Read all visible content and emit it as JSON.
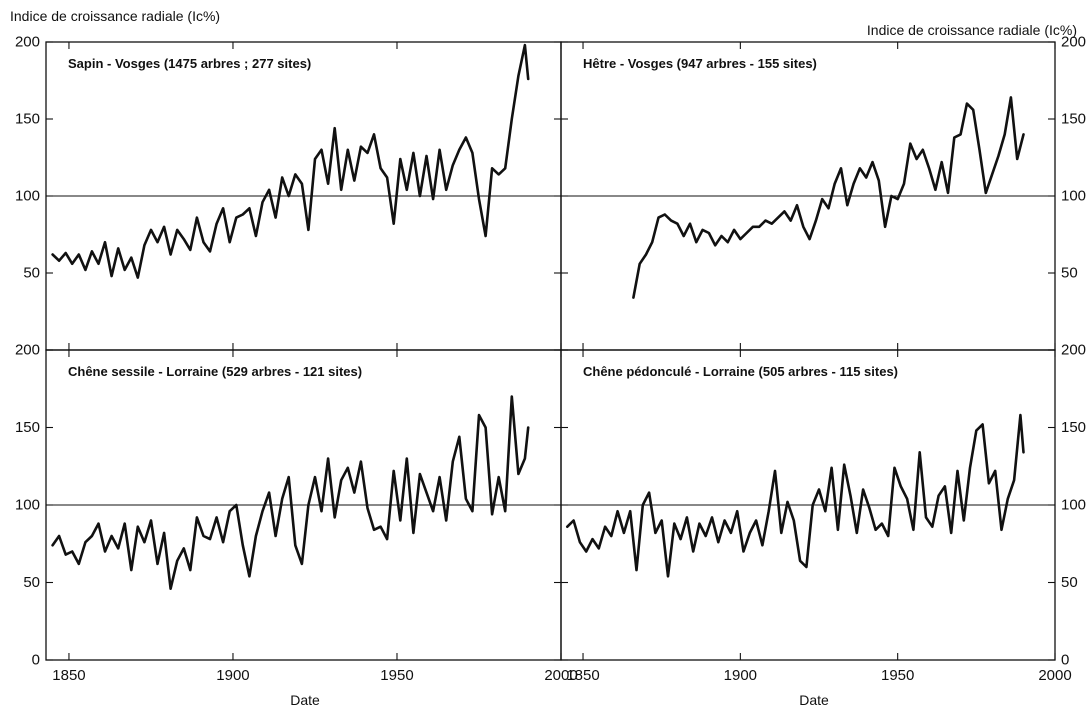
{
  "figure": {
    "ylabel_left": "Indice de croissance radiale (Ic%)",
    "ylabel_right": "Indice de croissance radiale (Ic%)",
    "xlabel": "Date"
  },
  "chart_data": [
    {
      "type": "line",
      "title": "Sapin - Vosges (1475 arbres ; 277 sites)",
      "xlabel": "Date",
      "ylabel": "Indice de croissance radiale (Ic%)",
      "xlim": [
        1843,
        2000
      ],
      "ylim": [
        0,
        200
      ],
      "xticks": [
        1850,
        1900,
        1950,
        2000
      ],
      "yticks": [
        50,
        100,
        150,
        200
      ],
      "reference_line": 100,
      "series": [
        {
          "x": [
            1845,
            1847,
            1849,
            1851,
            1853,
            1855,
            1857,
            1859,
            1861,
            1863,
            1865,
            1867,
            1869,
            1871,
            1873,
            1875,
            1877,
            1879,
            1881,
            1883,
            1885,
            1887,
            1889,
            1891,
            1893,
            1895,
            1897,
            1899,
            1901,
            1903,
            1905,
            1907,
            1909,
            1911,
            1913,
            1915,
            1917,
            1919,
            1921,
            1923,
            1925,
            1927,
            1929,
            1931,
            1933,
            1935,
            1937,
            1939,
            1941,
            1943,
            1945,
            1947,
            1949,
            1951,
            1953,
            1955,
            1957,
            1959,
            1961,
            1963,
            1965,
            1967,
            1969,
            1971,
            1973,
            1975,
            1977,
            1979,
            1981,
            1983,
            1985,
            1987,
            1989,
            1990
          ],
          "y": [
            62,
            58,
            63,
            56,
            62,
            52,
            64,
            56,
            70,
            48,
            66,
            52,
            60,
            47,
            68,
            78,
            70,
            80,
            62,
            78,
            72,
            65,
            86,
            70,
            64,
            82,
            92,
            70,
            86,
            88,
            92,
            74,
            96,
            104,
            86,
            112,
            100,
            114,
            108,
            78,
            124,
            130,
            108,
            144,
            104,
            130,
            110,
            132,
            128,
            140,
            118,
            112,
            82,
            124,
            104,
            128,
            100,
            126,
            98,
            130,
            104,
            120,
            130,
            138,
            128,
            98,
            74,
            118,
            114,
            118,
            150,
            178,
            198,
            176
          ]
        }
      ]
    },
    {
      "type": "line",
      "title": "Hêtre - Vosges (947 arbres - 155 sites)",
      "xlabel": "Date",
      "ylabel": "Indice de croissance radiale (Ic%)",
      "xlim": [
        1843,
        2000
      ],
      "ylim": [
        0,
        200
      ],
      "xticks": [
        1850,
        1900,
        1950,
        2000
      ],
      "yticks": [
        50,
        100,
        150,
        200
      ],
      "reference_line": 100,
      "series": [
        {
          "x": [
            1866,
            1868,
            1870,
            1872,
            1874,
            1876,
            1878,
            1880,
            1882,
            1884,
            1886,
            1888,
            1890,
            1892,
            1894,
            1896,
            1898,
            1900,
            1902,
            1904,
            1906,
            1908,
            1910,
            1912,
            1914,
            1916,
            1918,
            1920,
            1922,
            1924,
            1926,
            1928,
            1930,
            1932,
            1934,
            1936,
            1938,
            1940,
            1942,
            1944,
            1946,
            1948,
            1950,
            1952,
            1954,
            1956,
            1958,
            1960,
            1962,
            1964,
            1966,
            1968,
            1970,
            1972,
            1974,
            1976,
            1978,
            1980,
            1982,
            1984,
            1986,
            1988,
            1990
          ],
          "y": [
            34,
            56,
            62,
            70,
            86,
            88,
            84,
            82,
            74,
            82,
            70,
            78,
            76,
            68,
            74,
            70,
            78,
            72,
            76,
            80,
            80,
            84,
            82,
            86,
            90,
            84,
            94,
            80,
            72,
            84,
            98,
            92,
            108,
            118,
            94,
            108,
            118,
            112,
            122,
            110,
            80,
            100,
            98,
            108,
            134,
            124,
            130,
            118,
            104,
            122,
            102,
            138,
            140,
            160,
            156,
            130,
            102,
            114,
            126,
            140,
            164,
            124,
            140
          ]
        }
      ]
    },
    {
      "type": "line",
      "title": "Chêne sessile - Lorraine (529 arbres - 121 sites)",
      "xlabel": "Date",
      "ylabel": "Indice de croissance radiale (Ic%)",
      "xlim": [
        1843,
        2000
      ],
      "ylim": [
        0,
        200
      ],
      "xticks": [
        1850,
        1900,
        1950,
        2000
      ],
      "yticks": [
        50,
        100,
        150,
        200
      ],
      "reference_line": 100,
      "series": [
        {
          "x": [
            1845,
            1847,
            1849,
            1851,
            1853,
            1855,
            1857,
            1859,
            1861,
            1863,
            1865,
            1867,
            1869,
            1871,
            1873,
            1875,
            1877,
            1879,
            1881,
            1883,
            1885,
            1887,
            1889,
            1891,
            1893,
            1895,
            1897,
            1899,
            1901,
            1903,
            1905,
            1907,
            1909,
            1911,
            1913,
            1915,
            1917,
            1919,
            1921,
            1923,
            1925,
            1927,
            1929,
            1931,
            1933,
            1935,
            1937,
            1939,
            1941,
            1943,
            1945,
            1947,
            1949,
            1951,
            1953,
            1955,
            1957,
            1959,
            1961,
            1963,
            1965,
            1967,
            1969,
            1971,
            1973,
            1975,
            1977,
            1979,
            1981,
            1983,
            1985,
            1987,
            1989,
            1990
          ],
          "y": [
            74,
            80,
            68,
            70,
            62,
            76,
            80,
            88,
            70,
            80,
            72,
            88,
            58,
            86,
            76,
            90,
            62,
            82,
            46,
            64,
            72,
            58,
            92,
            80,
            78,
            92,
            76,
            96,
            100,
            74,
            54,
            80,
            96,
            108,
            80,
            104,
            118,
            74,
            62,
            100,
            118,
            96,
            130,
            92,
            116,
            124,
            108,
            128,
            98,
            84,
            86,
            78,
            122,
            90,
            130,
            82,
            120,
            108,
            96,
            118,
            90,
            128,
            144,
            104,
            96,
            158,
            150,
            94,
            118,
            96,
            170,
            120,
            130,
            150
          ]
        }
      ]
    },
    {
      "type": "line",
      "title": "Chêne pédonculé - Lorraine (505 arbres - 115 sites)",
      "xlabel": "Date",
      "ylabel": "Indice de croissance radiale (Ic%)",
      "xlim": [
        1843,
        2000
      ],
      "ylim": [
        0,
        200
      ],
      "xticks": [
        1850,
        1900,
        1950,
        2000
      ],
      "yticks": [
        50,
        100,
        150,
        200
      ],
      "reference_line": 100,
      "series": [
        {
          "x": [
            1845,
            1847,
            1849,
            1851,
            1853,
            1855,
            1857,
            1859,
            1861,
            1863,
            1865,
            1867,
            1869,
            1871,
            1873,
            1875,
            1877,
            1879,
            1881,
            1883,
            1885,
            1887,
            1889,
            1891,
            1893,
            1895,
            1897,
            1899,
            1901,
            1903,
            1905,
            1907,
            1909,
            1911,
            1913,
            1915,
            1917,
            1919,
            1921,
            1923,
            1925,
            1927,
            1929,
            1931,
            1933,
            1935,
            1937,
            1939,
            1941,
            1943,
            1945,
            1947,
            1949,
            1951,
            1953,
            1955,
            1957,
            1959,
            1961,
            1963,
            1965,
            1967,
            1969,
            1971,
            1973,
            1975,
            1977,
            1979,
            1981,
            1983,
            1985,
            1987,
            1989,
            1990
          ],
          "y": [
            86,
            90,
            76,
            70,
            78,
            72,
            86,
            80,
            96,
            82,
            96,
            58,
            100,
            108,
            82,
            90,
            54,
            88,
            78,
            92,
            70,
            88,
            80,
            92,
            76,
            90,
            82,
            96,
            70,
            82,
            90,
            74,
            96,
            122,
            82,
            102,
            90,
            64,
            60,
            100,
            110,
            96,
            124,
            84,
            126,
            106,
            82,
            110,
            98,
            84,
            88,
            80,
            124,
            112,
            104,
            84,
            134,
            92,
            86,
            106,
            112,
            82,
            122,
            90,
            124,
            148,
            152,
            114,
            122,
            84,
            104,
            116,
            158,
            134
          ]
        }
      ]
    }
  ]
}
